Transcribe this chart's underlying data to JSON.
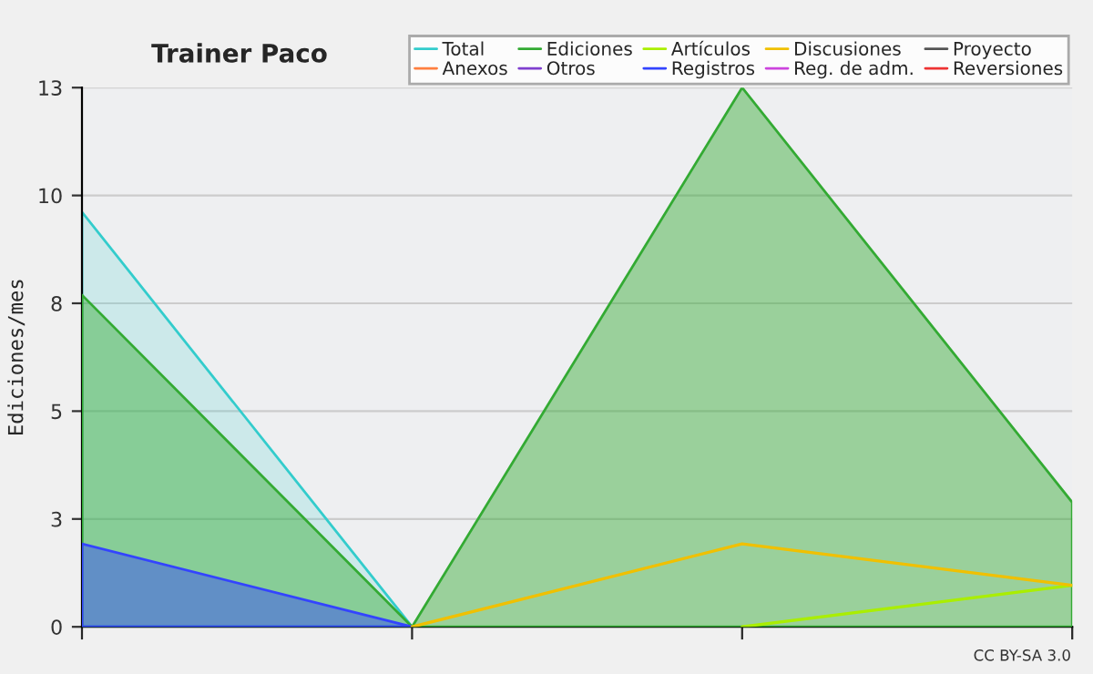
{
  "chart_data": {
    "type": "area",
    "title": "Trainer Paco",
    "ylabel": "Ediciones/mes",
    "categories": [
      null,
      null,
      null,
      null
    ],
    "series": [
      {
        "name": "Total",
        "color": "#33cccc",
        "values": [
          10,
          0,
          null,
          null
        ]
      },
      {
        "name": "Ediciones",
        "color": "#33aa33",
        "values": [
          8,
          0,
          13,
          3
        ]
      },
      {
        "name": "Artículos",
        "color": "#aaee00",
        "type": "line",
        "values": [
          null,
          null,
          0,
          1
        ]
      },
      {
        "name": "Discusiones",
        "color": "#f0c000",
        "type": "line",
        "values": [
          null,
          0,
          2,
          1
        ]
      },
      {
        "name": "Proyecto",
        "color": "#555555",
        "type": "line",
        "values": [
          null,
          null,
          null,
          null
        ]
      },
      {
        "name": "Anexos",
        "color": "#ff7f3f",
        "type": "line",
        "values": [
          null,
          null,
          null,
          null
        ]
      },
      {
        "name": "Otros",
        "color": "#7f3fcf",
        "type": "line",
        "values": [
          null,
          null,
          null,
          null
        ]
      },
      {
        "name": "Registros",
        "color": "#3344ff",
        "values": [
          2,
          0,
          null,
          null
        ]
      },
      {
        "name": "Reg. de adm.",
        "color": "#cc44dd",
        "type": "line",
        "values": [
          null,
          null,
          null,
          null
        ]
      },
      {
        "name": "Reversiones",
        "color": "#ee3333",
        "type": "line",
        "values": [
          null,
          null,
          null,
          null
        ]
      }
    ],
    "ylim": [
      0,
      13
    ],
    "yticks": [
      0,
      {
        "value": 2.6,
        "label": "3"
      },
      {
        "value": 5.2,
        "label": "5"
      },
      {
        "value": 7.8,
        "label": "8"
      },
      {
        "value": 10.4,
        "label": "10"
      },
      13
    ],
    "grid": "y",
    "legend": "top right",
    "annotations": [
      "CC BY-SA 3.0"
    ]
  }
}
